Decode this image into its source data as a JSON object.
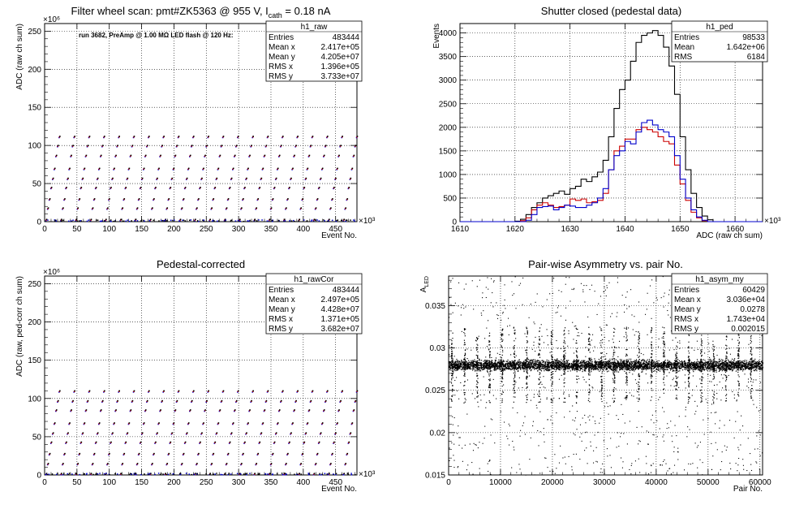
{
  "chart_data": [
    {
      "type": "scatter",
      "title": "Filter wheel scan: pmt#ZK5363 @   955 V, I",
      "title_sub": "cath",
      "title_end": " = 0.18 nA",
      "annotation": "run 3682, PreAmp @ 1.00 MΩ LED flash @  120 Hz:",
      "xlabel": "Event No.",
      "ylabel": "ADC (raw ch sum)",
      "x_multiplier": "×10³",
      "y_multiplier": "×10⁶",
      "xlim": [
        0,
        483
      ],
      "ylim": [
        0,
        260
      ],
      "xticks": [
        "0",
        "50",
        "100",
        "150",
        "200",
        "250",
        "300",
        "350",
        "400",
        "450"
      ],
      "yticks": [
        "0",
        "50",
        "100",
        "150",
        "200",
        "250"
      ],
      "grid": true,
      "levels": [
        3,
        18,
        30,
        45,
        57,
        70,
        87,
        100,
        112
      ],
      "period": 23,
      "stats": {
        "name": "h1_raw",
        "rows": [
          {
            "label": "Entries",
            "value": "483444"
          },
          {
            "label": "Mean x",
            "value": "2.417e+05"
          },
          {
            "label": "Mean y",
            "value": "4.205e+07"
          },
          {
            "label": "RMS x",
            "value": "1.396e+05"
          },
          {
            "label": "RMS y",
            "value": "3.733e+07"
          }
        ]
      },
      "colors": [
        "#0000cc",
        "#cc0000",
        "#000000"
      ]
    },
    {
      "type": "line",
      "title": "Shutter closed (pedestal data)",
      "xlabel": "ADC (raw ch sum)",
      "ylabel": "Events",
      "x_multiplier": "×10³",
      "xlim": [
        1610,
        1665
      ],
      "ylim": [
        0,
        4200
      ],
      "xticks": [
        "1610",
        "1620",
        "1630",
        "1640",
        "1650",
        "1660"
      ],
      "yticks": [
        "0",
        "500",
        "1000",
        "1500",
        "2000",
        "2500",
        "3000",
        "3500",
        "4000"
      ],
      "grid": true,
      "series": [
        {
          "color": "#000000",
          "x": [
            1620,
            1621,
            1622,
            1623,
            1624,
            1625,
            1626,
            1627,
            1628,
            1629,
            1630,
            1631,
            1632,
            1633,
            1634,
            1635,
            1636,
            1637,
            1638,
            1639,
            1640,
            1641,
            1642,
            1643,
            1644,
            1645,
            1646,
            1647,
            1648,
            1649,
            1650,
            1651,
            1652,
            1653,
            1654,
            1655,
            1656
          ],
          "y": [
            10,
            50,
            150,
            300,
            400,
            500,
            550,
            600,
            650,
            580,
            700,
            750,
            900,
            850,
            950,
            1050,
            1300,
            1800,
            2400,
            2800,
            3000,
            3400,
            3800,
            3950,
            4000,
            4050,
            3950,
            3700,
            3300,
            2700,
            1800,
            1100,
            600,
            300,
            120,
            40,
            0
          ]
        },
        {
          "color": "#cc0000",
          "x": [
            1620,
            1621,
            1622,
            1623,
            1624,
            1625,
            1626,
            1627,
            1628,
            1629,
            1630,
            1631,
            1632,
            1633,
            1634,
            1635,
            1636,
            1637,
            1638,
            1639,
            1640,
            1641,
            1642,
            1643,
            1644,
            1645,
            1646,
            1647,
            1648,
            1649,
            1650,
            1651,
            1652,
            1653,
            1654,
            1655,
            1656
          ],
          "y": [
            0,
            20,
            80,
            250,
            350,
            400,
            350,
            300,
            320,
            350,
            480,
            450,
            480,
            400,
            420,
            450,
            600,
            1100,
            1500,
            1600,
            1750,
            1750,
            1950,
            2000,
            1950,
            1900,
            1800,
            1700,
            1650,
            1200,
            800,
            450,
            200,
            80,
            20,
            0,
            0
          ]
        },
        {
          "color": "#0000cc",
          "x": [
            1620,
            1621,
            1622,
            1623,
            1624,
            1625,
            1626,
            1627,
            1628,
            1629,
            1630,
            1631,
            1632,
            1633,
            1634,
            1635,
            1636,
            1637,
            1638,
            1639,
            1640,
            1641,
            1642,
            1643,
            1644,
            1645,
            1646,
            1647,
            1648,
            1649,
            1650,
            1651,
            1652,
            1653,
            1654,
            1655,
            1656
          ],
          "y": [
            0,
            0,
            30,
            150,
            300,
            320,
            330,
            250,
            300,
            350,
            330,
            300,
            300,
            350,
            400,
            500,
            700,
            1100,
            1400,
            1500,
            1700,
            1650,
            1900,
            2100,
            2150,
            2050,
            1950,
            1900,
            1800,
            1400,
            900,
            500,
            250,
            100,
            30,
            0,
            0
          ]
        }
      ],
      "stats": {
        "name": "h1_ped",
        "rows": [
          {
            "label": "Entries",
            "value": "98533"
          },
          {
            "label": "Mean",
            "value": "1.642e+06"
          },
          {
            "label": "RMS",
            "value": "6184"
          }
        ]
      }
    },
    {
      "type": "scatter",
      "title": "Pedestal-corrected",
      "xlabel": "Event No.",
      "ylabel": "ADC (raw, ped-corr ch sum)",
      "x_multiplier": "×10³",
      "y_multiplier": "×10⁶",
      "xlim": [
        0,
        483
      ],
      "ylim": [
        0,
        260
      ],
      "xticks": [
        "0",
        "50",
        "100",
        "150",
        "200",
        "250",
        "300",
        "350",
        "400",
        "450"
      ],
      "yticks": [
        "0",
        "50",
        "100",
        "150",
        "200",
        "250"
      ],
      "grid": true,
      "levels": [
        2,
        15,
        28,
        43,
        55,
        68,
        85,
        97,
        110
      ],
      "period": 23,
      "stats": {
        "name": "h1_rawCor",
        "rows": [
          {
            "label": "Entries",
            "value": "483444"
          },
          {
            "label": "Mean x",
            "value": "2.497e+05"
          },
          {
            "label": "Mean y",
            "value": "4.428e+07"
          },
          {
            "label": "RMS x",
            "value": "1.371e+05"
          },
          {
            "label": "RMS y",
            "value": "3.682e+07"
          }
        ]
      },
      "colors": [
        "#0000cc",
        "#cc0000",
        "#000000"
      ]
    },
    {
      "type": "scatter",
      "title": "Pair-wise Asymmetry vs. pair No.",
      "xlabel": "Pair No.",
      "ylabel": "A",
      "ylabel_sub": "LED",
      "xlim": [
        0,
        60500
      ],
      "ylim": [
        0.015,
        0.0385
      ],
      "xticks": [
        "0",
        "10000",
        "20000",
        "30000",
        "40000",
        "50000",
        "60000"
      ],
      "xtick_values": [
        0,
        10000,
        20000,
        30000,
        40000,
        50000,
        60000
      ],
      "yticks": [
        "0.015",
        "0.02",
        "0.025",
        "0.03",
        "0.035"
      ],
      "ytick_values": [
        0.015,
        0.02,
        0.025,
        0.03,
        0.035
      ],
      "grid": true,
      "band_center": 0.028,
      "spike_period": 2400,
      "stats": {
        "name": "h1_asym_my",
        "rows": [
          {
            "label": "Entries",
            "value": "60429"
          },
          {
            "label": "Mean x",
            "value": "3.036e+04"
          },
          {
            "label": "Mean y",
            "value": "0.0278"
          },
          {
            "label": "RMS x",
            "value": "1.743e+04"
          },
          {
            "label": "RMS y",
            "value": "0.002015"
          }
        ]
      }
    }
  ]
}
